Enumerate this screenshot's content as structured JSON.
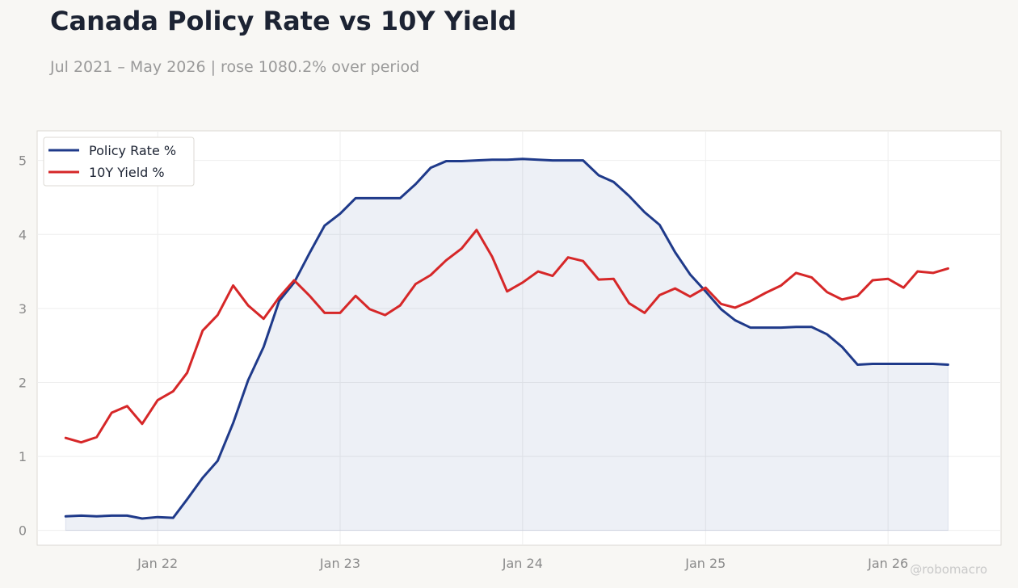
{
  "header": {
    "title": "Canada Policy Rate vs 10Y Yield",
    "subtitle": "Jul 2021 – May 2026 | rose 1080.2% over period"
  },
  "watermark": "@robomacro",
  "colors": {
    "background": "#f8f7f4",
    "plot_background": "#ffffff",
    "policy_rate": "#1f3a8a",
    "yield_10y": "#d62728",
    "area_fill": "#1f3a8a"
  },
  "chart_data": {
    "type": "line",
    "title": "Canada Policy Rate vs 10Y Yield",
    "subtitle": "Jul 2021 – May 2026 | rose 1080.2% over period",
    "xlabel": "",
    "ylabel": "",
    "ylim": [
      -0.2,
      5.4
    ],
    "yticks": [
      0,
      1,
      2,
      3,
      4,
      5
    ],
    "xticks": [
      {
        "date": "2022-01",
        "label": "Jan 22"
      },
      {
        "date": "2023-01",
        "label": "Jan 23"
      },
      {
        "date": "2024-01",
        "label": "Jan 24"
      },
      {
        "date": "2025-01",
        "label": "Jan 25"
      },
      {
        "date": "2026-01",
        "label": "Jan 26"
      }
    ],
    "xlim": [
      "2021-05-05",
      "2026-08-15"
    ],
    "grid": true,
    "legend": "top-left",
    "x": [
      "2021-07",
      "2021-08",
      "2021-09",
      "2021-10",
      "2021-11",
      "2021-12",
      "2022-01",
      "2022-02",
      "2022-03",
      "2022-04",
      "2022-05",
      "2022-06",
      "2022-07",
      "2022-08",
      "2022-09",
      "2022-10",
      "2022-11",
      "2022-12",
      "2023-01",
      "2023-02",
      "2023-03",
      "2023-04",
      "2023-05",
      "2023-06",
      "2023-07",
      "2023-08",
      "2023-09",
      "2023-10",
      "2023-11",
      "2023-12",
      "2024-01",
      "2024-02",
      "2024-03",
      "2024-04",
      "2024-05",
      "2024-06",
      "2024-07",
      "2024-08",
      "2024-09",
      "2024-10",
      "2024-11",
      "2024-12",
      "2025-01",
      "2025-02",
      "2025-03",
      "2025-04",
      "2025-05",
      "2025-06",
      "2025-07",
      "2025-08",
      "2025-09",
      "2025-10",
      "2025-11",
      "2025-12",
      "2026-01",
      "2026-02",
      "2026-03",
      "2026-04",
      "2026-05"
    ],
    "series": [
      {
        "name": "Policy Rate %",
        "color": "#1f3a8a",
        "fill_area": true,
        "values": [
          0.19,
          0.2,
          0.19,
          0.2,
          0.2,
          0.16,
          0.18,
          0.17,
          0.42,
          0.71,
          0.94,
          1.45,
          2.03,
          2.48,
          3.1,
          3.35,
          3.75,
          4.12,
          4.28,
          4.49,
          4.49,
          4.49,
          4.49,
          4.68,
          4.9,
          4.99,
          4.99,
          5.0,
          5.01,
          5.01,
          5.02,
          5.01,
          5.0,
          5.0,
          5.0,
          4.8,
          4.71,
          4.52,
          4.3,
          4.13,
          3.76,
          3.46,
          3.23,
          2.99,
          2.84,
          2.74,
          2.74,
          2.74,
          2.75,
          2.75,
          2.65,
          2.48,
          2.24,
          2.25,
          2.25,
          2.25,
          2.25,
          2.25,
          2.24
        ]
      },
      {
        "name": "10Y Yield %",
        "color": "#d62728",
        "fill_area": false,
        "values": [
          1.25,
          1.19,
          1.26,
          1.59,
          1.68,
          1.44,
          1.76,
          1.88,
          2.13,
          2.7,
          2.91,
          3.31,
          3.04,
          2.86,
          3.15,
          3.38,
          3.17,
          2.94,
          2.94,
          3.17,
          2.99,
          2.91,
          3.04,
          3.33,
          3.45,
          3.65,
          3.81,
          4.06,
          3.7,
          3.23,
          3.35,
          3.5,
          3.44,
          3.69,
          3.64,
          3.39,
          3.4,
          3.07,
          2.94,
          3.18,
          3.27,
          3.16,
          3.28,
          3.06,
          3.01,
          3.1,
          3.21,
          3.31,
          3.48,
          3.42,
          3.22,
          3.12,
          3.17,
          3.38,
          3.4,
          3.28,
          3.5,
          3.48,
          3.54
        ]
      }
    ]
  }
}
